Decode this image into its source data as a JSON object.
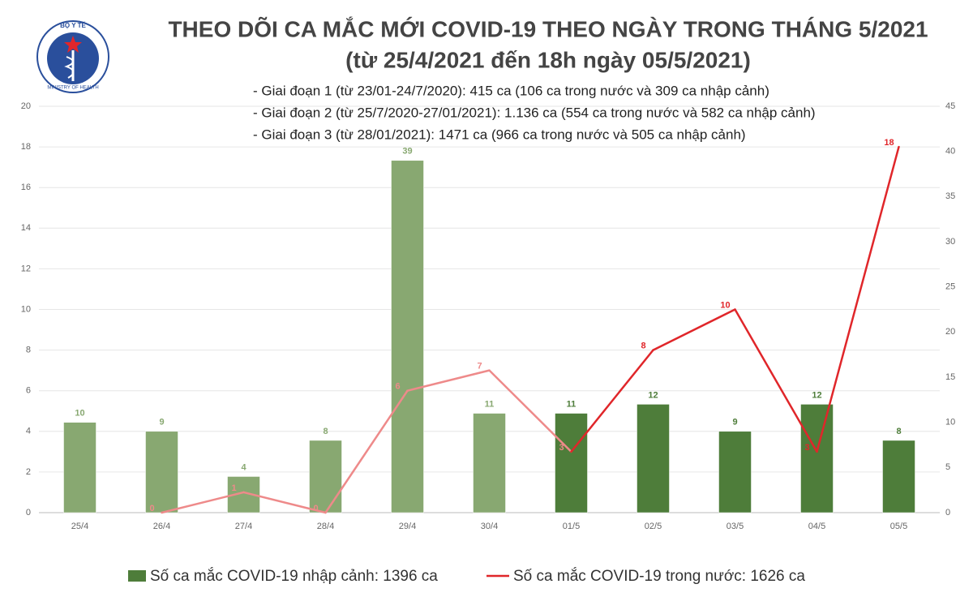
{
  "logo": {
    "top": "BỘ Y TẾ",
    "bottom": "MINISTRY OF HEALTH"
  },
  "chart_data": {
    "type": "bar-line",
    "title": "THEO DÕI CA MẮC MỚI COVID-19 THEO NGÀY TRONG THÁNG 5/2021",
    "subtitle": "(từ 25/4/2021 đến 18h ngày 05/5/2021)",
    "annotations": [
      "- Giai đoạn 1 (từ 23/01-24/7/2020): 415 ca (106 ca trong nước và 309 ca nhập cảnh)",
      "- Giai đoạn 2 (từ 25/7/2020-27/01/2021): 1.136 ca (554 ca trong nước và 582 ca nhập cảnh)",
      "- Giai đoạn 3 (từ 28/01/2021): 1471 ca (966 ca trong nước và 505 ca nhập cảnh)"
    ],
    "categories": [
      "25/4",
      "26/4",
      "27/4",
      "28/4",
      "29/4",
      "30/4",
      "01/5",
      "02/5",
      "03/5",
      "04/5",
      "05/5"
    ],
    "ylim": [
      0,
      20
    ],
    "yticks": [
      0,
      2,
      4,
      6,
      8,
      10,
      12,
      14,
      16,
      18,
      20
    ],
    "y2lim": [
      0,
      45
    ],
    "y2ticks": [
      0,
      5,
      10,
      15,
      20,
      25,
      30,
      35,
      40,
      45
    ],
    "grid": true,
    "series": [
      {
        "name": "Số ca mắc COVID-19 nhập cảnh: 1396 ca",
        "type": "bar",
        "axis": "y2",
        "color": "#4e7d3a",
        "colors": [
          "#88a871",
          "#88a871",
          "#88a871",
          "#88a871",
          "#88a871",
          "#88a871",
          "#4e7d3a",
          "#4e7d3a",
          "#4e7d3a",
          "#4e7d3a",
          "#4e7d3a"
        ],
        "values": [
          10,
          9,
          4,
          8,
          39,
          11,
          11,
          12,
          9,
          12,
          8
        ]
      },
      {
        "name": "Số ca mắc COVID-19 trong nước: 1626 ca",
        "type": "line",
        "color": "#e0262a",
        "colors": [
          null,
          "#ee8a8a",
          "#ee8a8a",
          "#ee8a8a",
          "#ee8a8a",
          "#ee8a8a",
          "#ee8a8a",
          "#e0262a",
          "#e0262a",
          "#e0262a",
          "#e0262a"
        ],
        "values": [
          null,
          0,
          1,
          0,
          6,
          7,
          3,
          8,
          10,
          3,
          18
        ]
      }
    ]
  }
}
